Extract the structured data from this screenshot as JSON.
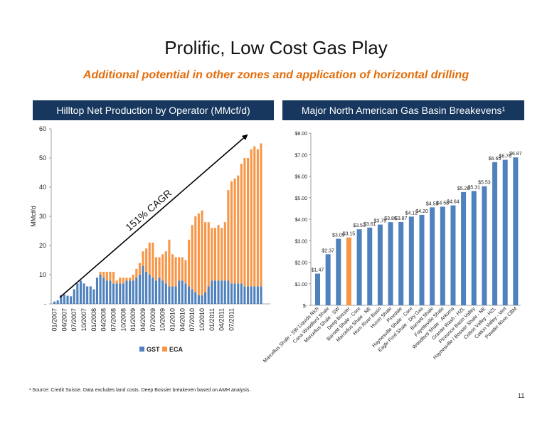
{
  "title": "Prolific, Low Cost Gas Play",
  "subtitle": "Additional potential in other zones and application of horizontal drilling",
  "left_header": "Hilltop Net Production by Operator (MMcf/d)",
  "right_header": "Major North American Gas Basin Breakevens¹",
  "footnote": "¹ Source: Credit Suisse.  Data excludes land costs.  Deep Bossier breakeven based on AMH analysis.",
  "page_number": "11",
  "colors": {
    "header_bg": "#17375e",
    "gst": "#4f81bd",
    "eca": "#f79646",
    "highlight": "#f79646",
    "accent_text": "#e46c0a"
  },
  "chart_data": [
    {
      "type": "bar",
      "stacked": true,
      "ylabel": "MMcf/d",
      "ylim": [
        0,
        60
      ],
      "yticks": [
        "-",
        "10",
        "20",
        "30",
        "40",
        "50",
        "60"
      ],
      "xtick_labels": [
        "01/2007",
        "04/2007",
        "07/2007",
        "10/2007",
        "01/2008",
        "04/2008",
        "07/2008",
        "10/2008",
        "01/2009",
        "04/2009",
        "07/2009",
        "10/2009",
        "01/2010",
        "04/2010",
        "07/2010",
        "10/2010",
        "01/2011",
        "04/2011",
        "07/2011"
      ],
      "annotation": "151% CAGR",
      "legend": {
        "placement": "bottom",
        "entries": [
          "GST",
          "ECA"
        ]
      },
      "series": [
        {
          "name": "GST",
          "values": [
            0.8,
            1.2,
            3,
            3.2,
            2.8,
            2.6,
            5,
            7,
            8,
            7,
            6,
            6,
            5,
            9,
            10,
            9,
            8,
            8,
            7,
            7,
            7,
            7,
            8,
            8,
            8,
            9,
            10,
            13,
            11,
            10,
            9,
            8,
            9,
            8,
            7,
            6,
            6,
            6,
            8,
            8,
            7,
            6,
            5,
            4,
            3,
            3,
            4,
            6,
            8,
            8,
            8,
            8,
            8,
            8,
            7,
            7,
            7,
            7,
            6,
            6,
            6,
            6,
            6,
            6
          ]
        },
        {
          "name": "ECA",
          "values": [
            0,
            0,
            0,
            0,
            0,
            0,
            0,
            0,
            0,
            0,
            0,
            0,
            0,
            0,
            1,
            2,
            3,
            3,
            4,
            1,
            2,
            2,
            1,
            1,
            2,
            3,
            4,
            5,
            8,
            11,
            12,
            8,
            7,
            9,
            11,
            16,
            11,
            10,
            8,
            8,
            8,
            16,
            22,
            26,
            28,
            29,
            24,
            22,
            18,
            18,
            19,
            18,
            20,
            31,
            35,
            36,
            37,
            41,
            44,
            44,
            47,
            48,
            47,
            49
          ]
        }
      ]
    },
    {
      "type": "bar",
      "ylim": [
        0,
        8
      ],
      "yticks": [
        "$-",
        "$1.00",
        "$2.00",
        "$3.00",
        "$4.00",
        "$5.00",
        "$6.00",
        "$7.00",
        "$8.00"
      ],
      "categories": [
        "Marcellus Shale - SW Liquids Rich",
        "Cana Woodford Shale",
        "Marcellus Shale - SW",
        "Deep Bossier",
        "Barnett Shale - Core",
        "Marcellus Shale - NE",
        "Horn River Basin",
        "Huron Shale",
        "Pinedale",
        "Haynesville Shale - Core",
        "Eagle Ford Shale - Dry Gas",
        "Barnett Shale",
        "Fayetteville Shale",
        "Woodford Shale - Arkoma",
        "Granite Wash - HZL",
        "Piceance Basin Valley",
        "Haynesville / Bossier Shale - NE",
        "Cotton Valley - HZL",
        "Cotton Valley - Vert",
        "Powder River CBM"
      ],
      "values": [
        1.47,
        2.37,
        3.09,
        3.15,
        3.53,
        3.61,
        3.75,
        3.86,
        3.87,
        4.12,
        4.2,
        4.55,
        4.58,
        4.64,
        5.26,
        5.31,
        5.53,
        6.65,
        6.76,
        6.87
      ],
      "data_labels": [
        "$1.47",
        "$2.37",
        "$3.09",
        "$3.15",
        "$3.53",
        "$3.61",
        "$3.75",
        "$3.86",
        "$3.87",
        "$4.12",
        "$4.20",
        "$4.55",
        "$4.58",
        "$4.64",
        "$5.26",
        "$5.31",
        "$5.53",
        "$6.65",
        "$6.76",
        "$6.87"
      ],
      "highlight_index": 3
    }
  ]
}
